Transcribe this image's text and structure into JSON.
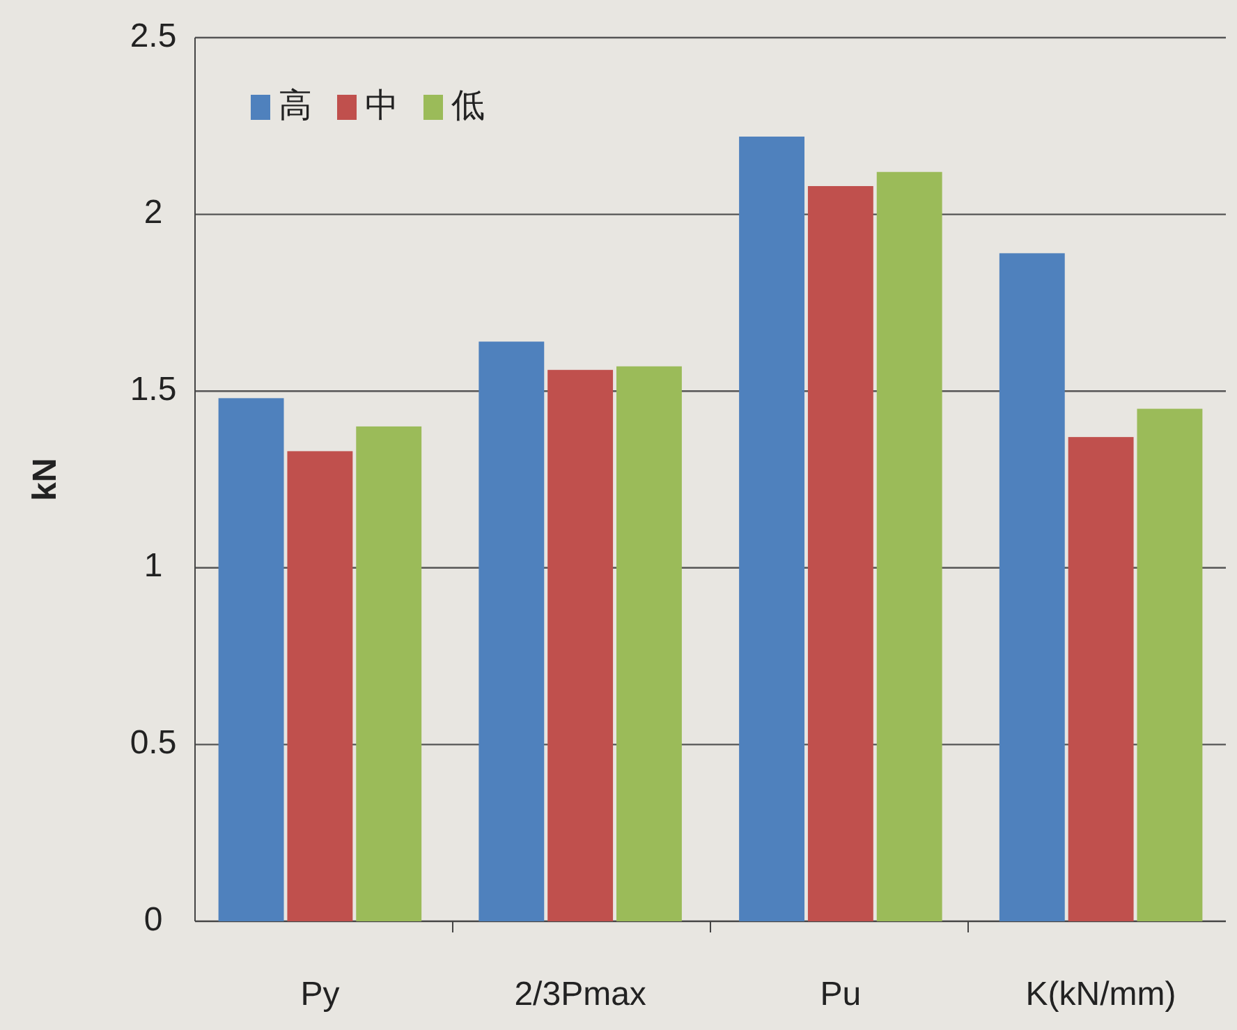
{
  "chart_data": {
    "type": "bar",
    "ylabel": "kN",
    "categories": [
      "Py",
      "2/3Pmax",
      "Pu",
      "K(kN/mm)"
    ],
    "series": [
      {
        "name": "高",
        "color": "#4f81bd",
        "values": [
          1.48,
          1.64,
          2.22,
          1.89
        ]
      },
      {
        "name": "中",
        "color": "#c0504d",
        "values": [
          1.33,
          1.56,
          2.08,
          1.37
        ]
      },
      {
        "name": "低",
        "color": "#9bbb59",
        "values": [
          1.4,
          1.57,
          2.12,
          1.45
        ]
      }
    ],
    "ylim": [
      0,
      2.5
    ],
    "yticks": [
      0,
      0.5,
      1,
      1.5,
      2,
      2.5
    ],
    "grid": "y",
    "legend": "top left"
  }
}
